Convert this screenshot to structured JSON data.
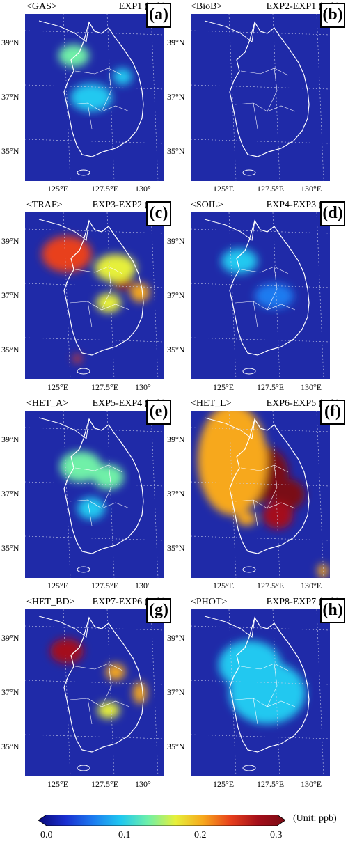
{
  "panels": [
    {
      "scheme": "<GAS>",
      "exp": "EXP1 (ppb)",
      "letter": "(a)",
      "lats": [
        "39°N",
        "37°N",
        "35°N"
      ],
      "lons": [
        "125°E",
        "127.5°E",
        "130°"
      ]
    },
    {
      "scheme": "<BioB>",
      "exp": "EXP2-EXP1 (ppb)",
      "letter": "(b)",
      "lats": [
        "39°N",
        "37°N",
        "35°N"
      ],
      "lons": [
        "125°E",
        "127.5°E",
        "130°E"
      ]
    },
    {
      "scheme": "<TRAF>",
      "exp": "EXP3-EXP2 (ppb)",
      "letter": "(c)",
      "lats": [
        "39°N",
        "37°N",
        "35°N"
      ],
      "lons": [
        "125°E",
        "127.5°E",
        "130°"
      ]
    },
    {
      "scheme": "<SOIL>",
      "exp": "EXP4-EXP3 (ppb)",
      "letter": "(d)",
      "lats": [
        "39°N",
        "37°N",
        "35°N"
      ],
      "lons": [
        "125°E",
        "127.5°E",
        "130°E"
      ]
    },
    {
      "scheme": "<HET_A>",
      "exp": "EXP5-EXP4 (ppb)",
      "letter": "(e)",
      "lats": [
        "39°N",
        "37°N",
        "35°N"
      ],
      "lons": [
        "125°E",
        "127.5°E",
        "130'"
      ]
    },
    {
      "scheme": "<HET_L>",
      "exp": "EXP6-EXP5 (ppb)",
      "letter": "(f)",
      "lats": [
        "39°N",
        "37°N",
        "35°N"
      ],
      "lons": [
        "125°E",
        "127.5°E",
        "130°E"
      ]
    },
    {
      "scheme": "<HET_BD>",
      "exp": "EXP7-EXP6 (ppb)",
      "letter": "(g)",
      "lats": [
        "39°N",
        "37°N",
        "35°N"
      ],
      "lons": [
        "125°E",
        "127.5°E",
        "130°"
      ]
    },
    {
      "scheme": "<PHOT>",
      "exp": "EXP8-EXP7 (ppb)",
      "letter": "(h)",
      "lats": [
        "39°N",
        "37°N",
        "35°N"
      ],
      "lons": [
        "125°E",
        "127.5°E",
        "130°E"
      ]
    }
  ],
  "colorbar": {
    "unit_label": "(Unit: ppb)",
    "ticks": [
      "0.0",
      "0.1",
      "0.2",
      "0.3"
    ],
    "colors": [
      "#0a0a78",
      "#1a2fd0",
      "#1c7bf0",
      "#20c8f0",
      "#6ff0a8",
      "#e6f03a",
      "#f7a81c",
      "#e8401c",
      "#a40f1a",
      "#7a0a14"
    ]
  },
  "colors": {
    "background": "#1f2aa8",
    "coast": "#ffffff"
  }
}
